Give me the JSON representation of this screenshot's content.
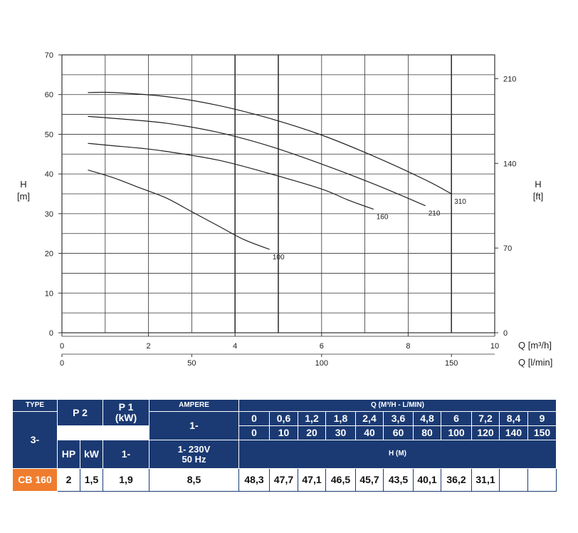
{
  "chart_data": {
    "type": "line",
    "title": "",
    "ylabel": "H\n[m]",
    "ylabel_right": "H\n[ft]",
    "xlabel": "Q [m³/h]",
    "xlabel_secondary": "Q [l/min]",
    "xlim": [
      0,
      10
    ],
    "ylim": [
      0,
      70
    ],
    "x_ticks": [
      0,
      2,
      4,
      6,
      8,
      10
    ],
    "x_ticks_secondary": [
      0,
      50,
      100,
      150
    ],
    "y_ticks": [
      0,
      10,
      20,
      30,
      40,
      50,
      60,
      70
    ],
    "y_ticks_right": [
      0,
      70,
      140,
      210
    ],
    "grid": true,
    "series": [
      {
        "name": "100",
        "x": [
          0.6,
          1.2,
          1.8,
          2.4,
          3.0,
          3.6,
          4.2,
          4.8
        ],
        "y": [
          41,
          39,
          36.5,
          34,
          30.5,
          27,
          23.5,
          21
        ]
      },
      {
        "name": "160",
        "x": [
          0.6,
          1.2,
          1.8,
          2.4,
          3.6,
          4.8,
          6.0,
          6.6,
          7.2
        ],
        "y": [
          47.7,
          47.1,
          46.5,
          45.7,
          43.5,
          40.1,
          36.2,
          33.5,
          31.1
        ]
      },
      {
        "name": "210",
        "x": [
          0.6,
          1.2,
          2.4,
          3.6,
          4.8,
          6.0,
          7.2,
          8.4
        ],
        "y": [
          54.5,
          54,
          52.8,
          50.5,
          47,
          42.5,
          37.5,
          32
        ]
      },
      {
        "name": "310",
        "x": [
          0.6,
          1.2,
          2.4,
          3.6,
          4.8,
          6.0,
          7.2,
          8.4,
          9.0
        ],
        "y": [
          60.5,
          60.5,
          59.5,
          57.3,
          54,
          49.8,
          44.5,
          38.5,
          35
        ]
      }
    ]
  },
  "table": {
    "type_label": "TYPE",
    "type_value": "3-",
    "p2_label": "P 2",
    "p1_label": "P 1\n(kW)",
    "p1_sub": "1-",
    "ampere_label": "AMPERE",
    "ampere_sub": "1-",
    "ampere_voltage": "1- 230V\n50 Hz",
    "hp_label": "HP",
    "kw_label": "kW",
    "q_label": "Q (M³/H - L/MIN)",
    "q_m3h": [
      "0",
      "0,6",
      "1,2",
      "1,8",
      "2,4",
      "3,6",
      "4,8",
      "6",
      "7,2",
      "8,4",
      "9"
    ],
    "q_lmin": [
      "0",
      "10",
      "20",
      "30",
      "40",
      "60",
      "80",
      "100",
      "120",
      "140",
      "150"
    ],
    "h_label": "H (M)",
    "model": "CB 160",
    "hp": "2",
    "kw": "1,5",
    "p1": "1,9",
    "ampere": "8,5",
    "h_values": [
      "48,3",
      "47,7",
      "47,1",
      "46,5",
      "45,7",
      "43,5",
      "40,1",
      "36,2",
      "31,1",
      "",
      ""
    ]
  },
  "colors": {
    "header": "#1b3a73",
    "model": "#f07d2e",
    "grid": "#333333"
  }
}
